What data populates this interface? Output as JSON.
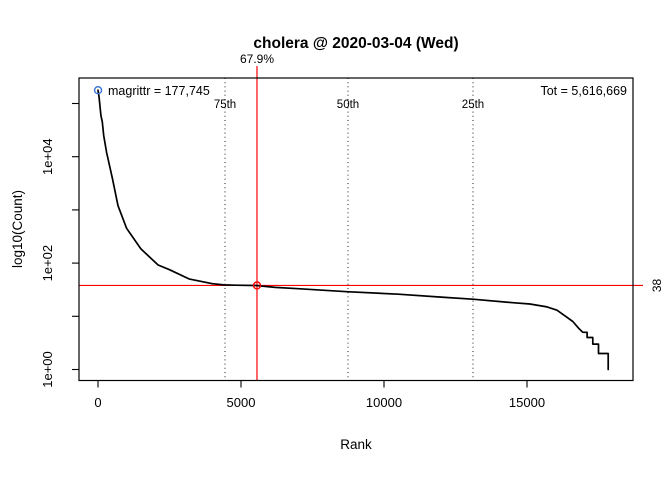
{
  "title": "cholera @ 2020-03-04 (Wed)",
  "chart_data": {
    "type": "line",
    "title": "cholera @ 2020-03-04 (Wed)",
    "xlabel": "Rank",
    "ylabel": "log10(Count)",
    "x_ticks": [
      0,
      5000,
      10000,
      15000
    ],
    "x_tick_labels": [
      "0",
      "5000",
      "10000",
      "15000"
    ],
    "y_scale": "log10",
    "y_tick_exponents_all": [
      0,
      1,
      2,
      3,
      4,
      5
    ],
    "y_ticks_labeled": [
      {
        "exponent": 0,
        "label": "1e+00"
      },
      {
        "exponent": 2,
        "label": "1e+02"
      },
      {
        "exponent": 4,
        "label": "1e+04"
      }
    ],
    "xlim": [
      -660,
      18700
    ],
    "ylim_log10": [
      -0.22,
      5.48
    ],
    "grid": false,
    "legend": "none",
    "curve": [
      [
        1,
        177745
      ],
      [
        40,
        130000
      ],
      [
        100,
        60000
      ],
      [
        150,
        45000
      ],
      [
        200,
        25000
      ],
      [
        300,
        12000
      ],
      [
        500,
        4000
      ],
      [
        700,
        1200
      ],
      [
        1000,
        450
      ],
      [
        1500,
        185
      ],
      [
        2100,
        92
      ],
      [
        2500,
        75
      ],
      [
        3200,
        50
      ],
      [
        4000,
        41
      ],
      [
        4400,
        39
      ],
      [
        4800,
        38.5
      ],
      [
        5533,
        38
      ],
      [
        6200,
        35
      ],
      [
        7000,
        33
      ],
      [
        8700,
        29
      ],
      [
        10500,
        26
      ],
      [
        12000,
        23
      ],
      [
        13100,
        21
      ],
      [
        14500,
        18
      ],
      [
        15100,
        17
      ],
      [
        15700,
        15
      ],
      [
        16050,
        13
      ],
      [
        16350,
        10
      ],
      [
        16600,
        8
      ],
      [
        16800,
        6
      ],
      [
        16950,
        5
      ],
      [
        17100,
        5
      ],
      [
        17100,
        4
      ],
      [
        17300,
        4
      ],
      [
        17300,
        3
      ],
      [
        17500,
        3
      ],
      [
        17500,
        2
      ],
      [
        17840,
        2
      ],
      [
        17840,
        1
      ]
    ],
    "annotations": {
      "top_package": {
        "label": "magrittr = 177,745",
        "rank": 1,
        "count": 177745
      },
      "total": {
        "label": "Tot = 5,616,669",
        "value": 5616669
      },
      "percentiles": [
        {
          "label": "75th",
          "rank": 4441
        },
        {
          "label": "50th",
          "rank": 8741
        },
        {
          "label": "25th",
          "rank": 13112
        }
      ],
      "crosshair": {
        "rank": 5559,
        "count": 38,
        "percent_label": "67.9%",
        "count_label": "38"
      }
    },
    "colors": {
      "curve": "#000000",
      "crosshair_red": "#ff0000",
      "annotation_blue": "#3572d8",
      "percentile_line": "#1f1f1f"
    }
  }
}
